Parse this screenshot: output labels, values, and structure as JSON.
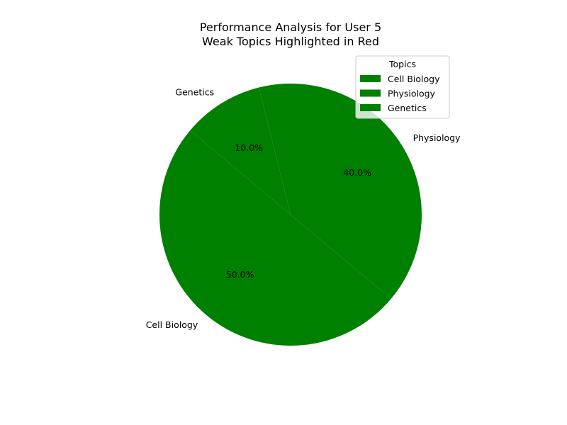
{
  "chart_data": {
    "type": "pie",
    "title": "Performance Analysis for User 5",
    "subtitle": "Weak Topics Highlighted in Red",
    "categories": [
      "Cell Biology",
      "Physiology",
      "Genetics"
    ],
    "values": [
      50.0,
      40.0,
      10.0
    ],
    "value_labels": [
      "50.0%",
      "40.0%",
      "10.0%"
    ],
    "colors": [
      "#008000",
      "#008000",
      "#008000"
    ],
    "start_angle_deg": 140,
    "counterclockwise": true,
    "legend": {
      "title": "Topics",
      "placement": "top-right",
      "entries": [
        "Cell Biology",
        "Physiology",
        "Genetics"
      ]
    }
  }
}
